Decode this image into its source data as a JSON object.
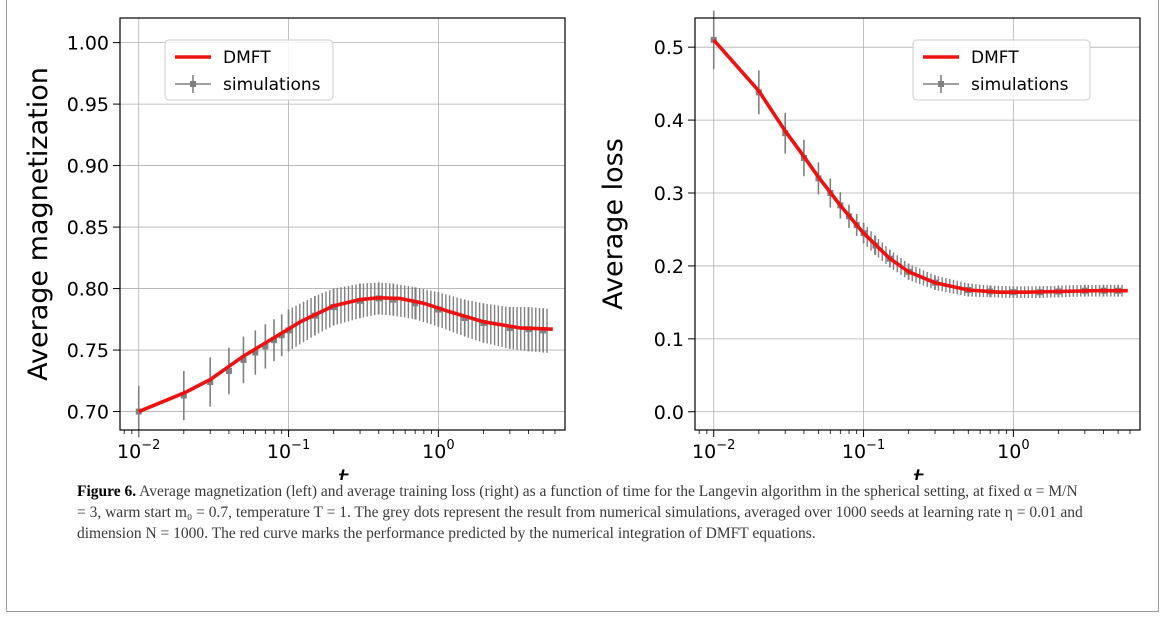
{
  "chart_data": [
    {
      "type": "line",
      "xscale": "log",
      "xlim": [
        0.0075,
        7
      ],
      "ylim": [
        0.685,
        1.02
      ],
      "xlabel": "t",
      "ylabel": "Average magnetization",
      "xticks": [
        {
          "v": 0.01,
          "base": "10",
          "exp": "−2"
        },
        {
          "v": 0.1,
          "base": "10",
          "exp": "−1"
        },
        {
          "v": 1,
          "base": "10",
          "exp": "0"
        }
      ],
      "yticks": [
        "0.70",
        "0.75",
        "0.80",
        "0.85",
        "0.90",
        "0.95",
        "1.00"
      ],
      "grid": true,
      "legend_position": "top-left",
      "series": [
        {
          "name": "DMFT",
          "color": "#ee1111",
          "x": [
            0.01,
            0.02,
            0.03,
            0.05,
            0.08,
            0.12,
            0.2,
            0.3,
            0.4,
            0.55,
            0.8,
            1.2,
            2,
            3.5,
            5.8
          ],
          "y": [
            0.7,
            0.715,
            0.726,
            0.745,
            0.76,
            0.773,
            0.786,
            0.791,
            0.7925,
            0.792,
            0.788,
            0.781,
            0.773,
            0.768,
            0.767
          ]
        },
        {
          "name": "simulations",
          "color": "#808080",
          "errorbars": true,
          "x": [
            0.01,
            0.02,
            0.03,
            0.04,
            0.05,
            0.06,
            0.07,
            0.08,
            0.09,
            0.1,
            0.15,
            0.2,
            0.3,
            0.4,
            0.5,
            0.7,
            1.0,
            1.5,
            2.0,
            3.0,
            4.0,
            5.0
          ],
          "y": [
            0.7,
            0.713,
            0.724,
            0.733,
            0.742,
            0.748,
            0.753,
            0.758,
            0.762,
            0.766,
            0.778,
            0.785,
            0.79,
            0.792,
            0.791,
            0.788,
            0.783,
            0.776,
            0.772,
            0.768,
            0.767,
            0.766
          ],
          "yerr": [
            0.021,
            0.02,
            0.02,
            0.019,
            0.019,
            0.018,
            0.018,
            0.017,
            0.017,
            0.017,
            0.016,
            0.015,
            0.014,
            0.013,
            0.013,
            0.013,
            0.014,
            0.015,
            0.016,
            0.017,
            0.018,
            0.018
          ]
        }
      ]
    },
    {
      "type": "line",
      "xscale": "log",
      "xlim": [
        0.0075,
        7
      ],
      "ylim": [
        -0.025,
        0.54
      ],
      "xlabel": "t",
      "ylabel": "Average loss",
      "xticks": [
        {
          "v": 0.01,
          "base": "10",
          "exp": "−2"
        },
        {
          "v": 0.1,
          "base": "10",
          "exp": "−1"
        },
        {
          "v": 1,
          "base": "10",
          "exp": "0"
        }
      ],
      "yticks": [
        "0.0",
        "0.1",
        "0.2",
        "0.3",
        "0.4",
        "0.5"
      ],
      "grid": true,
      "legend_position": "top-right",
      "series": [
        {
          "name": "DMFT",
          "color": "#ee1111",
          "x": [
            0.01,
            0.02,
            0.03,
            0.04,
            0.05,
            0.07,
            0.1,
            0.15,
            0.2,
            0.3,
            0.5,
            0.8,
            1.2,
            2,
            3.5,
            5.8
          ],
          "y": [
            0.51,
            0.44,
            0.385,
            0.35,
            0.322,
            0.283,
            0.245,
            0.21,
            0.192,
            0.177,
            0.167,
            0.164,
            0.164,
            0.165,
            0.166,
            0.166
          ],
          "yticks_values": [
            0,
            0.1,
            0.2,
            0.3,
            0.4,
            0.5
          ]
        },
        {
          "name": "simulations",
          "color": "#808080",
          "errorbars": true,
          "x": [
            0.01,
            0.02,
            0.03,
            0.04,
            0.05,
            0.06,
            0.07,
            0.08,
            0.09,
            0.1,
            0.12,
            0.15,
            0.2,
            0.3,
            0.5,
            0.7,
            1.0,
            1.5,
            2.0,
            3.0,
            4.0,
            5.0
          ],
          "y": [
            0.51,
            0.438,
            0.382,
            0.348,
            0.32,
            0.3,
            0.283,
            0.268,
            0.256,
            0.245,
            0.228,
            0.21,
            0.192,
            0.177,
            0.167,
            0.165,
            0.164,
            0.164,
            0.165,
            0.166,
            0.166,
            0.166
          ],
          "yerr": [
            0.04,
            0.03,
            0.028,
            0.025,
            0.022,
            0.02,
            0.018,
            0.016,
            0.015,
            0.014,
            0.013,
            0.012,
            0.011,
            0.01,
            0.009,
            0.008,
            0.008,
            0.008,
            0.008,
            0.008,
            0.008,
            0.008
          ]
        }
      ]
    }
  ],
  "legend": {
    "dmft": "DMFT",
    "simulations": "simulations"
  },
  "caption": {
    "label": "Figure 6.",
    "text": "Average magnetization (left) and average training loss (right) as a function of time for the Langevin algorithm in the spherical setting, at fixed α = M/N = 3, warm start m₀ = 0.7, temperature T = 1. The grey dots represent the result from numerical simulations, averaged over 1000 seeds at learning rate η = 0.01 and dimension N = 1000. The red curve marks the performance predicted by the numerical integration of DMFT equations."
  }
}
